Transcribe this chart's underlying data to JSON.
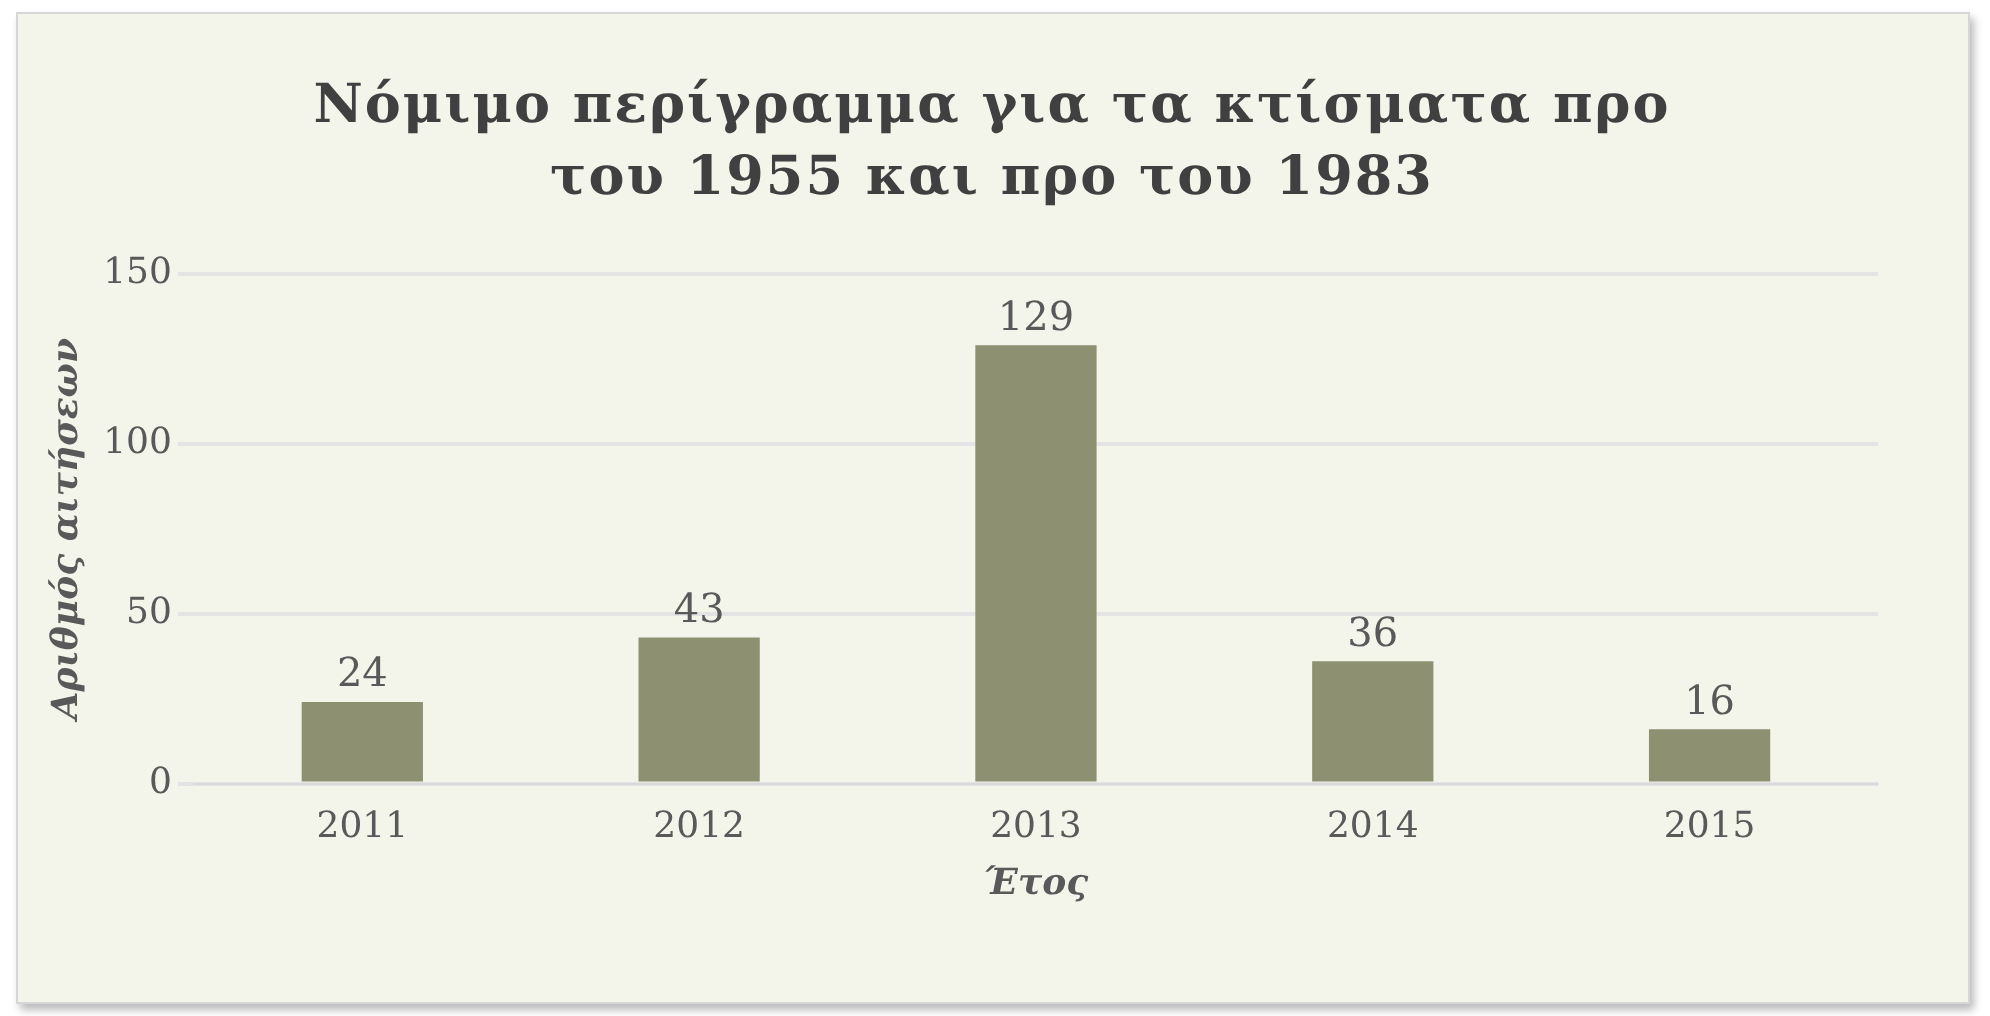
{
  "chart_data": {
    "type": "bar",
    "title": "Νόμιμο περίγραμμα για τα κτίσματα προ του 1955 και προ του 1983",
    "xlabel": "Έτος",
    "ylabel": "Αριθμός αιτήσεων",
    "categories": [
      "2011",
      "2012",
      "2013",
      "2014",
      "2015"
    ],
    "values": [
      24,
      43,
      129,
      36,
      16
    ],
    "color": "#8e9171",
    "ylim": [
      0,
      150
    ],
    "yticks": [
      0,
      50,
      100,
      150
    ],
    "grid": "y",
    "data_labels": true,
    "legend": false
  }
}
